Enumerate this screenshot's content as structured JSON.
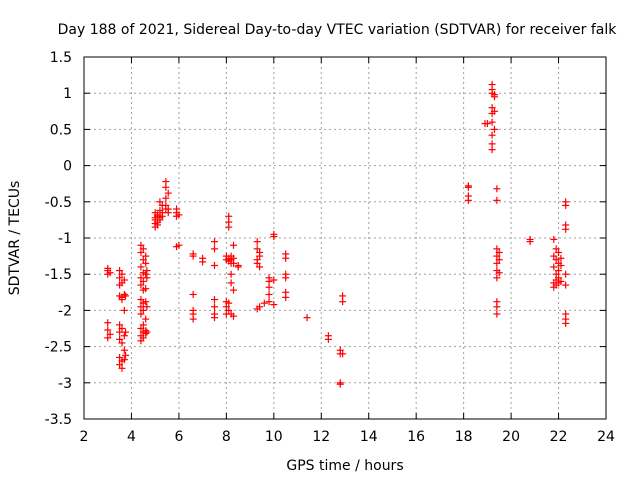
{
  "chart_data": {
    "type": "scatter",
    "title": "Day 188 of 2021, Sidereal Day-to-day VTEC variation (SDTVAR) for receiver falk",
    "xlabel": "GPS time / hours",
    "ylabel": "SDTVAR / TECUs",
    "xlim": [
      2,
      24
    ],
    "ylim": [
      -3.5,
      1.5
    ],
    "xticks": [
      2,
      4,
      6,
      8,
      10,
      12,
      14,
      16,
      18,
      20,
      22,
      24
    ],
    "yticks": [
      -3.5,
      -3,
      -2.5,
      -2,
      -1.5,
      -1,
      -0.5,
      0,
      0.5,
      1,
      1.5
    ],
    "xtick_labels": [
      "2",
      "4",
      "6",
      "8",
      "10",
      "12",
      "14",
      "16",
      "18",
      "20",
      "22",
      "24"
    ],
    "ytick_labels": [
      "-3.5",
      "-3",
      "-2.5",
      "-2",
      "-1.5",
      "-1",
      "-0.5",
      "0",
      "0.5",
      "1",
      "1.5"
    ],
    "grid": true,
    "marker": "+",
    "series": [
      {
        "name": "SDTVAR",
        "color": "#ff0000",
        "points": [
          [
            3.0,
            -1.45
          ],
          [
            3.0,
            -1.5
          ],
          [
            3.0,
            -1.42
          ],
          [
            3.0,
            -2.17
          ],
          [
            3.0,
            -2.27
          ],
          [
            3.0,
            -2.38
          ],
          [
            3.1,
            -1.48
          ],
          [
            3.1,
            -2.33
          ],
          [
            3.5,
            -1.45
          ],
          [
            3.5,
            -1.55
          ],
          [
            3.5,
            -1.65
          ],
          [
            3.5,
            -1.8
          ],
          [
            3.5,
            -2.2
          ],
          [
            3.5,
            -2.3
          ],
          [
            3.5,
            -2.4
          ],
          [
            3.5,
            -2.65
          ],
          [
            3.5,
            -2.75
          ],
          [
            3.6,
            -1.5
          ],
          [
            3.6,
            -1.62
          ],
          [
            3.6,
            -1.82
          ],
          [
            3.6,
            -1.85
          ],
          [
            3.6,
            -2.25
          ],
          [
            3.6,
            -2.45
          ],
          [
            3.6,
            -2.7
          ],
          [
            3.6,
            -2.8
          ],
          [
            3.7,
            -1.58
          ],
          [
            3.7,
            -1.78
          ],
          [
            3.7,
            -2.0
          ],
          [
            3.7,
            -2.35
          ],
          [
            3.7,
            -2.55
          ],
          [
            3.7,
            -2.68
          ],
          [
            3.75,
            -1.8
          ],
          [
            3.75,
            -2.3
          ],
          [
            3.75,
            -2.62
          ],
          [
            4.4,
            -1.1
          ],
          [
            4.4,
            -1.2
          ],
          [
            4.4,
            -1.4
          ],
          [
            4.4,
            -1.55
          ],
          [
            4.4,
            -1.65
          ],
          [
            4.4,
            -1.85
          ],
          [
            4.4,
            -1.95
          ],
          [
            4.4,
            -2.05
          ],
          [
            4.4,
            -2.25
          ],
          [
            4.4,
            -2.35
          ],
          [
            4.4,
            -2.42
          ],
          [
            4.5,
            -1.15
          ],
          [
            4.5,
            -1.3
          ],
          [
            4.5,
            -1.48
          ],
          [
            4.5,
            -1.6
          ],
          [
            4.5,
            -1.72
          ],
          [
            4.5,
            -1.9
          ],
          [
            4.5,
            -2.0
          ],
          [
            4.5,
            -2.2
          ],
          [
            4.5,
            -2.3
          ],
          [
            4.5,
            -2.38
          ],
          [
            4.6,
            -1.25
          ],
          [
            4.6,
            -1.35
          ],
          [
            4.6,
            -1.5
          ],
          [
            4.6,
            -1.7
          ],
          [
            4.6,
            -1.88
          ],
          [
            4.6,
            -2.12
          ],
          [
            4.6,
            -2.28
          ],
          [
            4.6,
            -2.32
          ],
          [
            4.65,
            -1.45
          ],
          [
            4.65,
            -1.55
          ],
          [
            4.65,
            -1.95
          ],
          [
            4.65,
            -2.3
          ],
          [
            5.0,
            -0.65
          ],
          [
            5.0,
            -0.72
          ],
          [
            5.0,
            -0.8
          ],
          [
            5.0,
            -0.85
          ],
          [
            5.0,
            -0.75
          ],
          [
            5.1,
            -0.68
          ],
          [
            5.1,
            -0.7
          ],
          [
            5.1,
            -0.78
          ],
          [
            5.1,
            -0.82
          ],
          [
            5.2,
            -0.62
          ],
          [
            5.2,
            -0.72
          ],
          [
            5.2,
            -0.75
          ],
          [
            5.2,
            -0.5
          ],
          [
            5.3,
            -0.55
          ],
          [
            5.3,
            -0.65
          ],
          [
            5.3,
            -0.7
          ],
          [
            5.45,
            -0.22
          ],
          [
            5.45,
            -0.3
          ],
          [
            5.45,
            -0.45
          ],
          [
            5.45,
            -0.55
          ],
          [
            5.45,
            -0.6
          ],
          [
            5.55,
            -0.38
          ],
          [
            5.55,
            -0.6
          ],
          [
            5.55,
            -0.65
          ],
          [
            5.9,
            -0.6
          ],
          [
            5.9,
            -0.65
          ],
          [
            5.9,
            -0.7
          ],
          [
            5.9,
            -1.12
          ],
          [
            6.0,
            -1.1
          ],
          [
            6.0,
            -0.68
          ],
          [
            6.6,
            -1.22
          ],
          [
            6.6,
            -1.25
          ],
          [
            6.6,
            -1.78
          ],
          [
            6.6,
            -2.0
          ],
          [
            6.6,
            -2.05
          ],
          [
            6.6,
            -2.12
          ],
          [
            7.0,
            -1.28
          ],
          [
            7.0,
            -1.33
          ],
          [
            7.5,
            -1.05
          ],
          [
            7.5,
            -1.15
          ],
          [
            7.5,
            -1.38
          ],
          [
            7.5,
            -1.85
          ],
          [
            7.5,
            -1.95
          ],
          [
            7.5,
            -2.05
          ],
          [
            7.5,
            -2.1
          ],
          [
            8.0,
            -1.88
          ],
          [
            8.0,
            -1.95
          ],
          [
            8.0,
            -2.05
          ],
          [
            8.0,
            -1.25
          ],
          [
            8.0,
            -1.3
          ],
          [
            8.1,
            -0.7
          ],
          [
            8.1,
            -0.78
          ],
          [
            8.1,
            -0.85
          ],
          [
            8.1,
            -1.28
          ],
          [
            8.1,
            -1.32
          ],
          [
            8.1,
            -1.9
          ],
          [
            8.1,
            -2.0
          ],
          [
            8.2,
            -1.25
          ],
          [
            8.2,
            -1.3
          ],
          [
            8.2,
            -1.35
          ],
          [
            8.2,
            -1.5
          ],
          [
            8.2,
            -1.62
          ],
          [
            8.2,
            -2.05
          ],
          [
            8.3,
            -1.1
          ],
          [
            8.3,
            -1.28
          ],
          [
            8.3,
            -1.35
          ],
          [
            8.3,
            -1.72
          ],
          [
            8.3,
            -2.08
          ],
          [
            8.5,
            -1.38
          ],
          [
            8.5,
            -1.4
          ],
          [
            9.3,
            -1.05
          ],
          [
            9.3,
            -1.15
          ],
          [
            9.3,
            -1.3
          ],
          [
            9.3,
            -1.35
          ],
          [
            9.3,
            -1.98
          ],
          [
            9.4,
            -1.2
          ],
          [
            9.4,
            -1.25
          ],
          [
            9.4,
            -1.4
          ],
          [
            9.4,
            -1.95
          ],
          [
            9.6,
            -1.9
          ],
          [
            9.8,
            -1.55
          ],
          [
            9.8,
            -1.6
          ],
          [
            9.8,
            -1.68
          ],
          [
            9.8,
            -1.78
          ],
          [
            9.8,
            -1.88
          ],
          [
            10.0,
            -0.95
          ],
          [
            10.0,
            -0.98
          ],
          [
            10.0,
            -1.92
          ],
          [
            10.0,
            -1.58
          ],
          [
            10.5,
            -1.22
          ],
          [
            10.5,
            -1.28
          ],
          [
            10.5,
            -1.5
          ],
          [
            10.5,
            -1.55
          ],
          [
            10.5,
            -1.75
          ],
          [
            10.5,
            -1.82
          ],
          [
            11.4,
            -2.1
          ],
          [
            12.3,
            -2.4
          ],
          [
            12.3,
            -2.35
          ],
          [
            12.8,
            -2.55
          ],
          [
            12.8,
            -2.6
          ],
          [
            12.8,
            -3.0
          ],
          [
            12.8,
            -3.02
          ],
          [
            12.9,
            -1.8
          ],
          [
            12.9,
            -1.88
          ],
          [
            12.9,
            -2.6
          ],
          [
            18.2,
            -0.28
          ],
          [
            18.2,
            -0.3
          ],
          [
            18.2,
            -0.42
          ],
          [
            18.2,
            -0.48
          ],
          [
            18.9,
            0.58
          ],
          [
            19.0,
            0.58
          ],
          [
            19.2,
            1.12
          ],
          [
            19.2,
            1.05
          ],
          [
            19.2,
            1.0
          ],
          [
            19.2,
            0.8
          ],
          [
            19.2,
            0.72
          ],
          [
            19.2,
            0.6
          ],
          [
            19.2,
            0.42
          ],
          [
            19.2,
            0.3
          ],
          [
            19.2,
            0.22
          ],
          [
            19.3,
            0.98
          ],
          [
            19.3,
            0.95
          ],
          [
            19.3,
            0.75
          ],
          [
            19.3,
            0.5
          ],
          [
            19.4,
            -0.32
          ],
          [
            19.4,
            -0.48
          ],
          [
            19.4,
            -1.15
          ],
          [
            19.4,
            -1.25
          ],
          [
            19.4,
            -1.35
          ],
          [
            19.4,
            -1.45
          ],
          [
            19.4,
            -1.55
          ],
          [
            19.4,
            -1.88
          ],
          [
            19.4,
            -1.95
          ],
          [
            19.4,
            -2.05
          ],
          [
            19.5,
            -1.2
          ],
          [
            19.5,
            -1.3
          ],
          [
            19.5,
            -1.48
          ],
          [
            20.8,
            -1.02
          ],
          [
            20.8,
            -1.05
          ],
          [
            21.8,
            -1.02
          ],
          [
            21.8,
            -1.25
          ],
          [
            21.8,
            -1.4
          ],
          [
            21.8,
            -1.62
          ],
          [
            21.8,
            -1.68
          ],
          [
            21.9,
            -1.15
          ],
          [
            21.9,
            -1.3
          ],
          [
            21.9,
            -1.5
          ],
          [
            21.9,
            -1.58
          ],
          [
            21.9,
            -1.65
          ],
          [
            22.0,
            -1.2
          ],
          [
            22.0,
            -1.35
          ],
          [
            22.0,
            -1.45
          ],
          [
            22.0,
            -1.55
          ],
          [
            22.0,
            -1.62
          ],
          [
            22.1,
            -1.28
          ],
          [
            22.1,
            -1.38
          ],
          [
            22.1,
            -1.6
          ],
          [
            22.3,
            -0.5
          ],
          [
            22.3,
            -0.55
          ],
          [
            22.3,
            -0.82
          ],
          [
            22.3,
            -0.88
          ],
          [
            22.3,
            -1.5
          ],
          [
            22.3,
            -1.65
          ],
          [
            22.3,
            -2.05
          ],
          [
            22.3,
            -2.12
          ],
          [
            22.3,
            -2.18
          ]
        ]
      }
    ]
  }
}
